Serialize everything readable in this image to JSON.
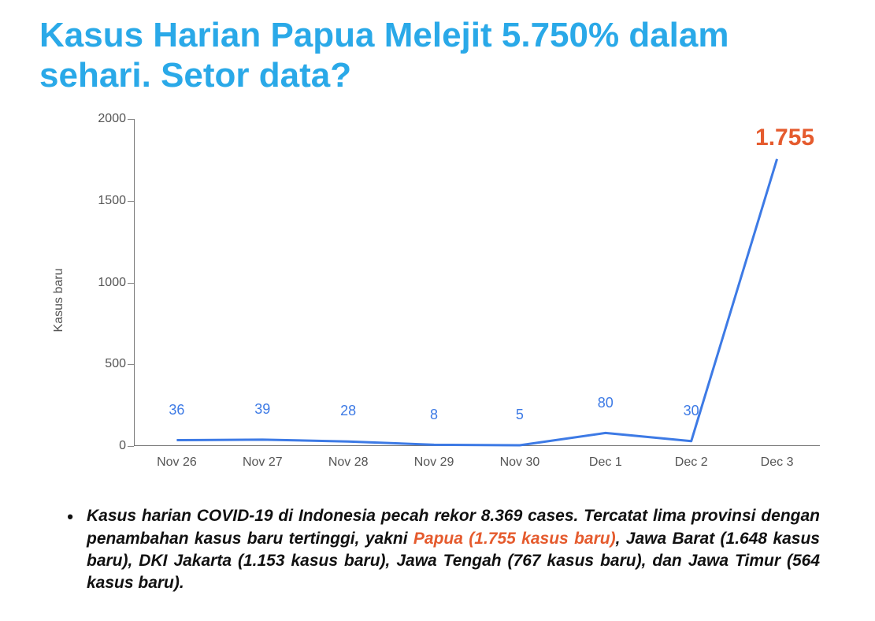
{
  "title": {
    "text": "Kasus Harian Papua Melejit 5.750% dalam sehari. Setor data?",
    "color": "#2aa9e8",
    "fontsize": 44,
    "fontweight": 700
  },
  "chart": {
    "type": "line",
    "ylabel": "Kasus baru",
    "ylabel_fontsize": 16,
    "ylim": [
      0,
      2000
    ],
    "yticks": [
      0,
      500,
      1000,
      1500,
      2000
    ],
    "line_color": "#3d7ae5",
    "line_width": 3,
    "categories": [
      "Nov 26",
      "Nov 27",
      "Nov 28",
      "Nov 29",
      "Nov 30",
      "Dec 1",
      "Dec 2",
      "Dec 3"
    ],
    "values": [
      36,
      39,
      28,
      8,
      5,
      80,
      30,
      1755
    ],
    "data_label_color": "#3d7ae5",
    "data_label_fontsize": 18,
    "highlight_value": "1.755",
    "highlight_color": "#e55b2e",
    "highlight_fontsize": 30,
    "highlight_fontweight": 700,
    "axis_color": "#777777",
    "tick_color": "#555555",
    "background_color": "#ffffff"
  },
  "caption": {
    "pre_text": "Kasus harian COVID-19 di Indonesia pecah rekor 8.369 cases. Tercatat lima provinsi dengan penambahan kasus baru tertinggi, yakni ",
    "highlight_text": "Papua (1.755 kasus baru)",
    "highlight_color": "#e55b2e",
    "post_text": ", Jawa Barat (1.648 kasus baru), DKI Jakarta (1.153 kasus baru), Jawa Tengah (767 kasus baru), dan Jawa Timur (564 kasus baru).",
    "fontsize": 21,
    "fontstyle": "italic",
    "fontweight": 700,
    "text_color": "#111111"
  }
}
